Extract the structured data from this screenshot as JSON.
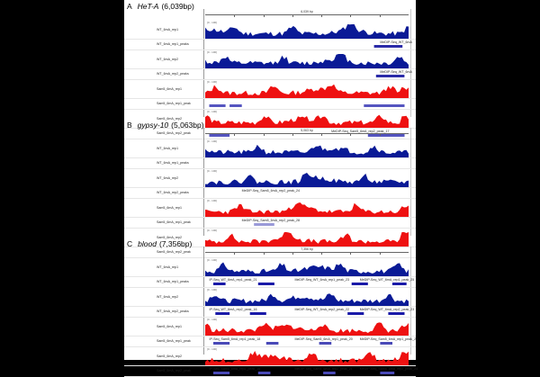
{
  "panels": [
    {
      "letter": "A",
      "title": "HeT-A",
      "length": "(6,039bp)",
      "scale": "6,039 bp",
      "tracks": [
        {
          "name": "WT_6mA_rep1",
          "type": "signal",
          "color": "#0a1a96",
          "range": "[0 - 100]",
          "seed": 11
        },
        {
          "name": "WT_6mA_rep1_peaks",
          "type": "peak",
          "color": "#2b2ba8",
          "peaks": [
            {
              "s": 0.83,
              "e": 0.97
            }
          ],
          "label": "MeDIP-Seq_WT_6mA",
          "label_pos": 0.86
        },
        {
          "name": "WT_6mA_rep2",
          "type": "signal",
          "color": "#0a1a96",
          "range": "[0 - 100]",
          "seed": 12
        },
        {
          "name": "WT_6mA_rep2_peaks",
          "type": "peak",
          "color": "#2b2ba8",
          "peaks": [
            {
              "s": 0.84,
              "e": 0.98
            }
          ],
          "label": "MeDIP-Seq_WT_6mA",
          "label_pos": 0.86
        },
        {
          "name": "Sam5_6mA_rep1",
          "type": "signal",
          "color": "#ee1111",
          "range": "[0 - 100]",
          "seed": 13
        },
        {
          "name": "Sam5_6mA_rep1_peak",
          "type": "peak",
          "color": "#5555c0",
          "peaks": [
            {
              "s": 0.02,
              "e": 0.1
            },
            {
              "s": 0.12,
              "e": 0.18
            },
            {
              "s": 0.78,
              "e": 0.98
            }
          ],
          "label": "",
          "label_pos": 0
        },
        {
          "name": "Sam5_6mA_rep2",
          "type": "signal",
          "color": "#ee1111",
          "range": "[0 - 100]",
          "seed": 14
        },
        {
          "name": "Sam5_6mA_rep2_peak",
          "type": "peak",
          "color": "#5555c0",
          "peaks": [
            {
              "s": 0.02,
              "e": 0.12
            },
            {
              "s": 0.8,
              "e": 0.98
            }
          ],
          "label": "MeDIP-Seq_Sam5_6mA_rep2_peak_17",
          "label_pos": 0.62
        }
      ]
    },
    {
      "letter": "B",
      "title": "gypsy-10",
      "length": "(5,063bp)",
      "scale": "5,063 bp",
      "tracks": [
        {
          "name": "WT_6mA_rep1",
          "type": "signal",
          "color": "#0a1a96",
          "range": "[0 - 100]",
          "seed": 21
        },
        {
          "name": "WT_6mA_rep1_peaks",
          "type": "peak",
          "color": "#2b2ba8",
          "peaks": [],
          "label": "",
          "label_pos": 0
        },
        {
          "name": "WT_6mA_rep2",
          "type": "signal",
          "color": "#0a1a96",
          "range": "[0 - 100]",
          "seed": 22
        },
        {
          "name": "WT_6mA_rep2_peaks",
          "type": "peak",
          "color": "#2b2ba8",
          "peaks": [],
          "label": "MeDIP-Seq_Sam5_6mA_rep2_peak_24",
          "label_pos": 0.18
        },
        {
          "name": "Sam5_6mA_rep1",
          "type": "signal",
          "color": "#ee1111",
          "range": "[0 - 100]",
          "seed": 23
        },
        {
          "name": "Sam5_6mA_rep1_peak",
          "type": "peak",
          "color": "#9a9ad8",
          "peaks": [
            {
              "s": 0.24,
              "e": 0.34
            }
          ],
          "label": "MeDIP-Seq_Sam5_6mA_rep2_peak_28",
          "label_pos": 0.18
        },
        {
          "name": "Sam5_6mA_rep2",
          "type": "signal",
          "color": "#ee1111",
          "range": "[0 - 100]",
          "seed": 24
        },
        {
          "name": "Sam5_6mA_rep2_peak",
          "type": "peak",
          "color": "#9a9ad8",
          "peaks": [],
          "label": "",
          "label_pos": 0
        }
      ]
    },
    {
      "letter": "C",
      "title": "blood",
      "length": "(7,356bp)",
      "scale": "7,356 bp",
      "tracks": [
        {
          "name": "WT_6mA_rep1",
          "type": "signal",
          "color": "#0a1a96",
          "range": "[0 - 100]",
          "seed": 31
        },
        {
          "name": "WT_6mA_rep1_peaks",
          "type": "peak",
          "color": "#1a1aa8",
          "peaks": [
            {
              "s": 0.04,
              "e": 0.1
            },
            {
              "s": 0.26,
              "e": 0.34
            },
            {
              "s": 0.72,
              "e": 0.8
            },
            {
              "s": 0.92,
              "e": 0.99
            }
          ],
          "label": "IP-Seq_WT_6mA_rep1_peak_21",
          "label_pos": 0.02,
          "label2": "MeDIP-Seq_WT_6mA_rep1_peak_23",
          "label2_pos": 0.44,
          "label3": "MeDIP-Seq_WT_6mA_rep1_peak_25",
          "label3_pos": 0.76
        },
        {
          "name": "WT_6mA_rep2",
          "type": "signal",
          "color": "#0a1a96",
          "range": "[0 - 100]",
          "seed": 32
        },
        {
          "name": "WT_6mA_rep2_peaks",
          "type": "peak",
          "color": "#1a1aa8",
          "peaks": [
            {
              "s": 0.05,
              "e": 0.12
            },
            {
              "s": 0.22,
              "e": 0.3
            },
            {
              "s": 0.7,
              "e": 0.78
            },
            {
              "s": 0.9,
              "e": 0.98
            }
          ],
          "label": "IP-Seq_WT_6mA_rep2_peak_16",
          "label_pos": 0.02,
          "label2": "MeDIP-Seq_WT_6mA_rep2_peak_22",
          "label2_pos": 0.44,
          "label3": "MeDIP-Seq_WT_6mA_rep2_peak_23",
          "label3_pos": 0.76
        },
        {
          "name": "Sam5_6mA_rep1",
          "type": "signal",
          "color": "#ee1111",
          "range": "[0 - 100]",
          "seed": 33
        },
        {
          "name": "Sam5_6mA_rep1_peak",
          "type": "peak",
          "color": "#4a4ab8",
          "peaks": [
            {
              "s": 0.04,
              "e": 0.12
            },
            {
              "s": 0.3,
              "e": 0.36
            },
            {
              "s": 0.56,
              "e": 0.62
            },
            {
              "s": 0.86,
              "e": 0.92
            }
          ],
          "label": "IP-Seq_Sam5_6mA_rep1_peak_18",
          "label_pos": 0.02,
          "label2": "MeDIP-Seq_Sam5_6mA_rep1_peak_20",
          "label2_pos": 0.44,
          "label3": "MeDIP-Seq_Sam5_6mA_rep1_peak_26",
          "label3_pos": 0.76
        },
        {
          "name": "Sam5_6mA_rep2",
          "type": "signal",
          "color": "#ee1111",
          "range": "[0 - 100]",
          "seed": 34
        },
        {
          "name": "Sam5_6mA_rep2_peak",
          "type": "peak",
          "color": "#4a4ab8",
          "peaks": [
            {
              "s": 0.04,
              "e": 0.12
            },
            {
              "s": 0.26,
              "e": 0.32
            },
            {
              "s": 0.58,
              "e": 0.64
            },
            {
              "s": 0.86,
              "e": 0.93
            }
          ],
          "label": "IP-Seq_Sam5_6mA_rep2_peak_16",
          "label_pos": 0.02,
          "label2": "MeDIP-Seq_Sam5_6mA_rep2_peak_21",
          "label2_pos": 0.44,
          "label3": "MeDIP-Seq_Sam5_6mA_rep2_peak_24",
          "label3_pos": 0.76
        }
      ]
    }
  ],
  "ruler_ticks": [
    "1,000 bp",
    "2,000 bp",
    "3,000 bp",
    "4,000 bp",
    "5,000 bp",
    "6,000 bp"
  ]
}
